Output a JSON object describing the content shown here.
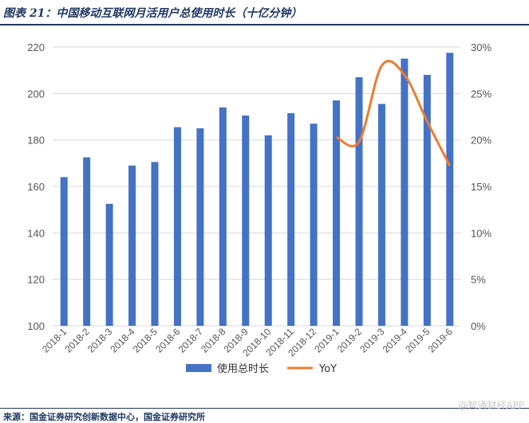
{
  "header": {
    "title": "图表 21：中国移动互联网月活用户总使用时长（十亿分钟）"
  },
  "footer": {
    "source": "来源：国金证券研究创新数据中心，国金证券研究所",
    "watermark": "@智通财经APP"
  },
  "chart_data": {
    "type": "bar",
    "title": "",
    "categories": [
      "2018-1",
      "2018-2",
      "2018-3",
      "2018-4",
      "2018-5",
      "2018-6",
      "2018-7",
      "2018-8",
      "2018-9",
      "2018-10",
      "2018-11",
      "2018-12",
      "2019-1",
      "2019-2",
      "2019-3",
      "2019-4",
      "2019-5",
      "2019-6"
    ],
    "series": [
      {
        "name": "使用总时长",
        "kind": "bar",
        "axis": "left",
        "color": "#4472c4",
        "values": [
          164,
          172.5,
          152.5,
          169,
          170.5,
          185.5,
          185,
          194,
          190.5,
          182,
          191.5,
          187,
          197,
          207,
          195.5,
          215,
          208,
          217.5
        ]
      },
      {
        "name": "YoY",
        "kind": "line",
        "axis": "right",
        "color": "#ed7d31",
        "x": [
          "2019-1",
          "2019-2",
          "2019-3",
          "2019-4",
          "2019-5",
          "2019-6"
        ],
        "values": [
          20.3,
          19.8,
          28.0,
          27.0,
          22.0,
          17.2
        ]
      }
    ],
    "ylim_left": [
      100,
      220
    ],
    "yticks_left": [
      "100",
      "120",
      "140",
      "160",
      "180",
      "200",
      "220"
    ],
    "ylim_right": [
      0,
      30
    ],
    "yticks_right": [
      "0%",
      "5%",
      "10%",
      "15%",
      "20%",
      "25%",
      "30%"
    ],
    "legend": "bottom",
    "grid": true
  }
}
